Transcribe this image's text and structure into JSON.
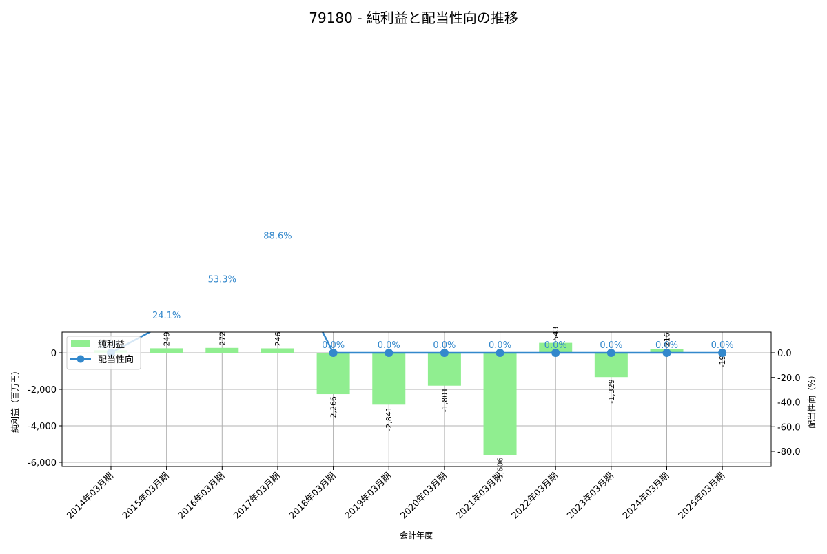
{
  "chart_data": {
    "type": "bar+line",
    "title": "79180 - 純利益と配当性向の推移",
    "xlabel": "会計年度",
    "ylabel_left": "純利益（百万円）",
    "ylabel_right": "配当性向（%）",
    "categories": [
      "2014年03月期",
      "2015年03月期",
      "2016年03月期",
      "2017年03月期",
      "2018年03月期",
      "2019年03月期",
      "2020年03月期",
      "2021年03月期",
      "2022年03月期",
      "2023年03月期",
      "2024年03月期",
      "2025年03月期"
    ],
    "series": [
      {
        "name": "純利益",
        "type": "bar",
        "axis": "left",
        "color": "#90ee90",
        "values": [
          140,
          249,
          272,
          246,
          -2266,
          -2841,
          -1801,
          -5606,
          543,
          -1329,
          216,
          -19
        ],
        "labels": [
          "",
          "249",
          "272",
          "246",
          "-2,266",
          "-2,841",
          "-1,801",
          "-5,606",
          "543",
          "-1,329",
          "216",
          "-19"
        ]
      },
      {
        "name": "配当性向",
        "type": "line",
        "axis": "right",
        "color": "#3388cc",
        "values": [
          0.0,
          24.1,
          53.3,
          88.6,
          0.0,
          0.0,
          0.0,
          0.0,
          0.0,
          0.0,
          0.0,
          0.0
        ],
        "labels": [
          "0.0%",
          "24.1%",
          "53.3%",
          "88.6%",
          "0.0%",
          "0.0%",
          "0.0%",
          "0.0%",
          "0.0%",
          "0.0%",
          "0.0%",
          "0.0%"
        ]
      }
    ],
    "left_axis": {
      "ticks": [
        0,
        -2000,
        -4000,
        -6000
      ],
      "tick_labels": [
        "0",
        "-2,000",
        "-4,000",
        "-6,000"
      ],
      "ylim": [
        -6226,
        1132
      ]
    },
    "right_axis": {
      "ticks": [
        0,
        -20,
        -40,
        -60,
        -80
      ],
      "tick_labels": [
        "0.0",
        "-20.0",
        "-40.0",
        "-60.0",
        "-80.0"
      ],
      "ylim": [
        -92,
        16.8
      ]
    },
    "grid": true,
    "legend": {
      "position": "upper left",
      "entries": [
        "純利益",
        "配当性向"
      ]
    }
  }
}
